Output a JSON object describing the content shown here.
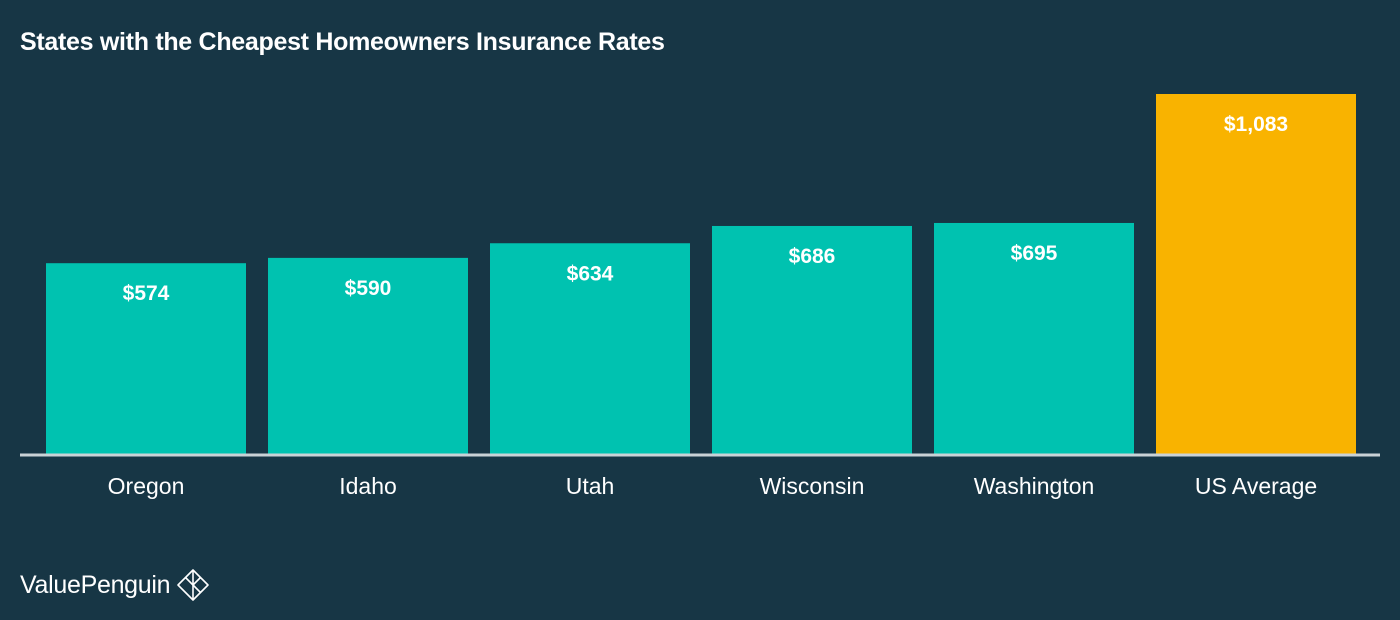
{
  "chart_data": {
    "type": "bar",
    "title": "States with the Cheapest Homeowners Insurance Rates",
    "xlabel": "",
    "ylabel": "",
    "categories": [
      "Oregon",
      "Idaho",
      "Utah",
      "Wisconsin",
      "Washington",
      "US Average"
    ],
    "values": [
      574,
      590,
      634,
      686,
      695,
      1083
    ],
    "value_labels": [
      "$574",
      "$590",
      "$634",
      "$686",
      "$695",
      "$1,083"
    ],
    "bar_colors": [
      "#00c2b0",
      "#00c2b0",
      "#00c2b0",
      "#00c2b0",
      "#00c2b0",
      "#f9b300"
    ],
    "ylim": [
      0,
      1083
    ],
    "grid": false,
    "legend": "none"
  },
  "colors": {
    "background": "#173645",
    "baseline": "#c9d2d6",
    "text": "#ffffff"
  },
  "brand": {
    "name": "ValuePenguin",
    "icon": "valuepenguin-logo-icon"
  }
}
